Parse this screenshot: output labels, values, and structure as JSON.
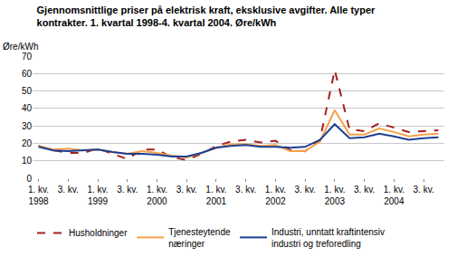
{
  "chart_data": {
    "type": "line",
    "title": "Gjennomsnittlige priser på elektrisk kraft, eksklusive avgifter. Alle typer\nkontrakter. 1. kvartal 1998-4. kvartal 2004. Øre/kWh",
    "y_label": "Øre/kWh",
    "categories": [
      "1. kv.\n1998",
      null,
      "3. kv.",
      null,
      "1. kv.\n1999",
      null,
      "3. kv.",
      null,
      "1. kv.\n2000",
      null,
      "3. kv.",
      null,
      "1. kv.\n2001",
      null,
      "3. kv.",
      null,
      "1. kv.\n2002",
      null,
      "3. kv.",
      null,
      "1. kv.\n2003",
      null,
      "3. kv.",
      null,
      "1. kv.\n2004",
      null,
      "3. kv.",
      null
    ],
    "series": [
      {
        "name": "Husholdninger",
        "color": "#a3201f",
        "line_style": "dash",
        "values": [
          18.5,
          16,
          14.5,
          14.5,
          17,
          14,
          11,
          16.5,
          16.5,
          12,
          10.5,
          14,
          18.5,
          21,
          22,
          20.5,
          21.5,
          16,
          15.5,
          22,
          62,
          28,
          27,
          31.5,
          29,
          26.5,
          27,
          27.5
        ]
      },
      {
        "name": "Tjenesteytende\nnæringer",
        "color": "#f4a24a",
        "line_style": "solid",
        "values": [
          18.5,
          16.5,
          17,
          16,
          16.5,
          15,
          14,
          15.5,
          14.5,
          13,
          12,
          14.5,
          17.5,
          19.5,
          19.5,
          18.5,
          19,
          15.5,
          15.5,
          21,
          39,
          25,
          25,
          28.5,
          26.5,
          24,
          25,
          25.5
        ]
      },
      {
        "name": "Industri, unntatt kraftintensiv\nindustri og treforedling",
        "color": "#1c3f94",
        "line_style": "solid",
        "values": [
          18,
          16,
          15.5,
          16,
          16.5,
          15,
          14,
          14,
          13.5,
          12.5,
          12.5,
          14.5,
          17.5,
          18.5,
          19,
          18,
          18,
          17.5,
          18,
          22,
          31,
          23,
          23.5,
          25.5,
          24,
          22,
          23,
          23.5
        ]
      }
    ],
    "ylim": [
      0,
      70
    ],
    "yticks": [
      0,
      10,
      20,
      30,
      40,
      50,
      60,
      70
    ],
    "grid": true,
    "legend": "bottom"
  }
}
